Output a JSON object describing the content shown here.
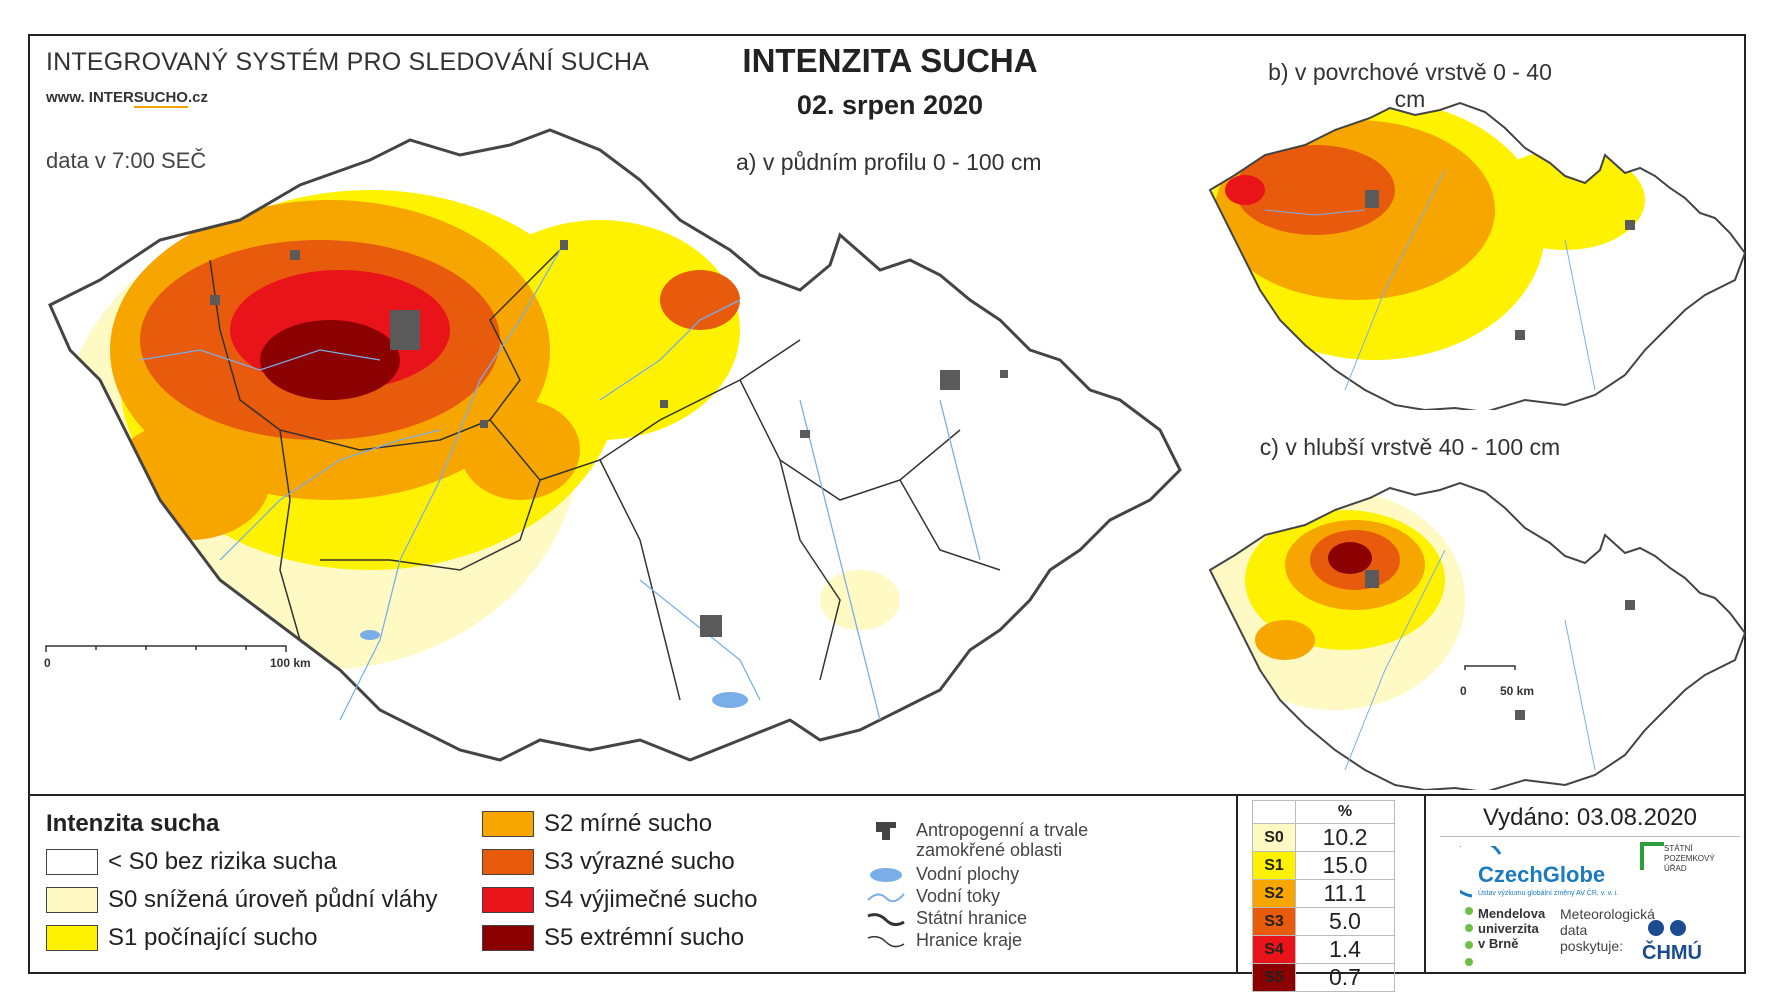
{
  "header": {
    "system_title": "INTEGROVANÝ SYSTÉM PRO SLEDOVÁNÍ SUCHA",
    "url_prefix": "www. INTER",
    "url_highlight": "SUCHO",
    "url_suffix": ".cz",
    "data_time": "data v 7:00 SEČ",
    "main_title": "INTENZITA SUCHA",
    "date": "02. srpen 2020"
  },
  "maps": {
    "a_title": "a) v půdním profilu 0 - 100 cm",
    "b_title": "b) v povrchové vrstvě 0 - 40 cm",
    "c_title": "c) v hlubší vrstvě 40 - 100 cm",
    "scale_a_start": "0",
    "scale_a_end": "100 km",
    "scale_c_start": "0",
    "scale_c_end": "50 km"
  },
  "legend": {
    "title": "Intenzita sucha",
    "items": [
      {
        "label": "< S0 bez rizika sucha",
        "color": "#ffffff"
      },
      {
        "label": "S0 snížená úroveň půdní vláhy",
        "color": "#fff9c4"
      },
      {
        "label": "S1 počínající sucho",
        "color": "#fff200"
      },
      {
        "label": "S2 mírné sucho",
        "color": "#f7a600"
      },
      {
        "label": "S3 výrazné sucho",
        "color": "#e85a0c"
      },
      {
        "label": "S4 výjimečné sucho",
        "color": "#e8141a"
      },
      {
        "label": "S5 extrémní sucho",
        "color": "#8b0000"
      }
    ]
  },
  "symbols": {
    "anthropogenic_line1": "Antropogenní a trvale",
    "anthropogenic_line2": "zamokřené oblasti",
    "water_bodies": "Vodní plochy",
    "water_courses": "Vodní toky",
    "state_border": "Státní hranice",
    "region_border": "Hranice kraje"
  },
  "percent_table": {
    "header": "%",
    "rows": [
      {
        "code": "S0",
        "value": "10.2",
        "color": "#fff9c4"
      },
      {
        "code": "S1",
        "value": "15.0",
        "color": "#fff200"
      },
      {
        "code": "S2",
        "value": "11.1",
        "color": "#f7a600"
      },
      {
        "code": "S3",
        "value": "5.0",
        "color": "#e85a0c"
      },
      {
        "code": "S4",
        "value": "1.4",
        "color": "#e8141a"
      },
      {
        "code": "S5",
        "value": "0.7",
        "color": "#8b0000"
      }
    ]
  },
  "footer": {
    "issued": "Vydáno: 03.08.2020",
    "czechglobe": "CzechGlobe",
    "czechglobe_sub": "Ústav výzkumu globální změny AV ČR, v. v. i.",
    "spu_line1": "STÁTNÍ",
    "spu_line2": "POZEMKOVÝ",
    "spu_line3": "ÚŘAD",
    "mendel_line1": "Mendelova",
    "mendel_line2": "univerzita",
    "mendel_line3": "v Brně",
    "meteo_line1": "Meteorologická",
    "meteo_line2": "data",
    "meteo_line3": "poskytuje:",
    "chmu": "ČHMÚ"
  }
}
